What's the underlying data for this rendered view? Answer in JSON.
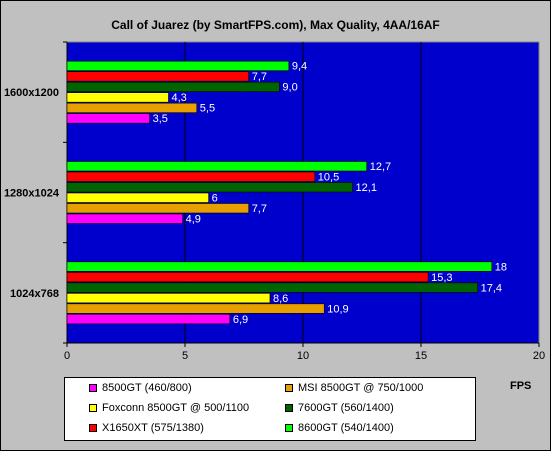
{
  "chart_data": {
    "type": "bar",
    "orientation": "horizontal",
    "title": "Call of Juarez (by SmartFPS.com), Max Quality, 4AA/16AF",
    "xlabel": "FPS",
    "ylabel": "",
    "xlim": [
      0,
      20
    ],
    "xticks": [
      "0",
      "5",
      "10",
      "15",
      "20"
    ],
    "grid": true,
    "legend_position": "bottom",
    "plot_background": "#0000cc",
    "categories": [
      "1600x1200",
      "1280x1024",
      "1024x768"
    ],
    "series": [
      {
        "name": "8500GT (460/800)",
        "color": "#ff00ff",
        "values": [
          3.5,
          4.9,
          6.9
        ],
        "labels": [
          "3,5",
          "4,9",
          "6,9"
        ]
      },
      {
        "name": "MSI 8500GT @ 750/1000",
        "color": "#e8a000",
        "values": [
          5.5,
          7.7,
          10.9
        ],
        "labels": [
          "5,5",
          "7,7",
          "10,9"
        ]
      },
      {
        "name": "Foxconn 8500GT @ 500/1100",
        "color": "#ffff00",
        "values": [
          4.3,
          6,
          8.6
        ],
        "labels": [
          "4,3",
          "6",
          "8,6"
        ]
      },
      {
        "name": "7600GT (560/1400)",
        "color": "#006400",
        "values": [
          9.0,
          12.1,
          17.4
        ],
        "labels": [
          "9,0",
          "12,1",
          "17,4"
        ]
      },
      {
        "name": "X1650XT (575/1380)",
        "color": "#ff0000",
        "values": [
          7.7,
          10.5,
          15.3
        ],
        "labels": [
          "7,7",
          "10,5",
          "15,3"
        ]
      },
      {
        "name": "8600GT (540/1400)",
        "color": "#00ff00",
        "values": [
          9.4,
          12.7,
          18
        ],
        "labels": [
          "9,4",
          "12,7",
          "18"
        ]
      }
    ]
  }
}
